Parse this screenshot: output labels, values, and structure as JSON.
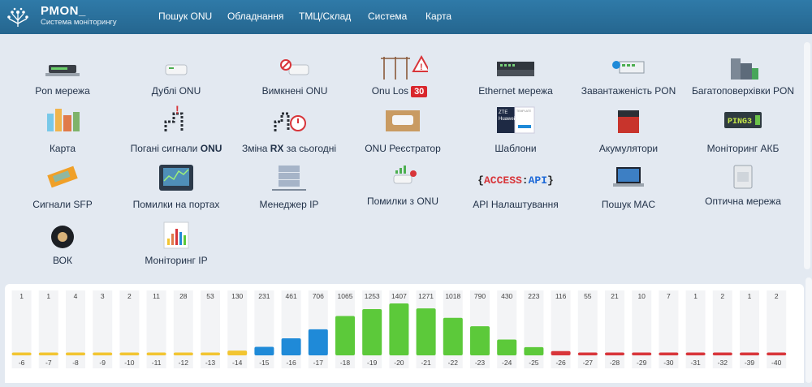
{
  "header": {
    "brand": "PMON_",
    "subtitle": "Система моніторингу",
    "nav": [
      "Пошук ONU",
      "Обладнання",
      "ТМЦ/Склад",
      "Система",
      "Карта"
    ]
  },
  "tiles": [
    {
      "label": "Pon мережа",
      "icon": "pon-network-icon"
    },
    {
      "label": "Дублі ONU",
      "icon": "onu-device-icon"
    },
    {
      "label": "Вимкнені ONU",
      "icon": "onu-off-icon"
    },
    {
      "label": "Onu Los",
      "badge": "30",
      "icon": "power-pole-warning-icon"
    },
    {
      "label": "Ethernet мережа",
      "icon": "switch-icon"
    },
    {
      "label": "Завантаженість PON",
      "icon": "pon-load-icon"
    },
    {
      "label": "Багатоповерхівки PON",
      "icon": "building-icon"
    },
    {
      "label": "Карта",
      "icon": "city-map-icon"
    },
    {
      "label": "Погані сигнали",
      "label_bold": "ONU",
      "icon": "bad-signal-icon"
    },
    {
      "label": "Зміна",
      "label_bold": "RX",
      "label_after": " за сьогодні",
      "icon": "rx-change-icon"
    },
    {
      "label": "ONU Реєстратор",
      "icon": "onu-box-icon"
    },
    {
      "label": "Шаблони",
      "icon": "templates-icon"
    },
    {
      "label": "Акумулятори",
      "icon": "battery-icon"
    },
    {
      "label": "Моніторинг АКБ",
      "icon": "ping-icon"
    },
    {
      "label": "Сигнали SFP",
      "icon": "sfp-icon"
    },
    {
      "label": "Помилки на портах",
      "icon": "port-errors-icon"
    },
    {
      "label": "Менеджер IP",
      "icon": "ip-manager-icon"
    },
    {
      "label": "Помилки з ONU",
      "icon": "onu-errors-icon"
    },
    {
      "label": "API Налаштування",
      "icon": "api-icon"
    },
    {
      "label": "Пошук MAC",
      "icon": "laptop-icon"
    },
    {
      "label": "Оптична мережа",
      "icon": "optical-box-icon"
    },
    {
      "label": "ВОК",
      "icon": "cable-drum-icon"
    },
    {
      "label": "Моніторинг IP",
      "icon": "ip-monitoring-icon"
    }
  ],
  "api_icon_text": {
    "left": "{",
    "access": "ACCESS",
    "colon": ":",
    "api": "API",
    "right": "}"
  },
  "ping_icon_text": "PING3",
  "template_icon_text": [
    "ZTE",
    "Huawei",
    "TEMPLATE"
  ],
  "colors": {
    "header": "#2a6f9a",
    "yellow": "#f2c531",
    "blue": "#1f8ad8",
    "green": "#5cc93a",
    "red": "#d8353a",
    "badge": "#d9262c"
  },
  "chart_data": {
    "type": "bar",
    "categories": [
      "-6",
      "-7",
      "-8",
      "-9",
      "-10",
      "-11",
      "-12",
      "-13",
      "-14",
      "-15",
      "-16",
      "-17",
      "-18",
      "-19",
      "-20",
      "-21",
      "-22",
      "-23",
      "-24",
      "-25",
      "-26",
      "-27",
      "-28",
      "-29",
      "-30",
      "-31",
      "-32",
      "-39",
      "-40"
    ],
    "values": [
      1,
      1,
      4,
      3,
      2,
      11,
      28,
      53,
      130,
      231,
      461,
      706,
      1065,
      1253,
      1407,
      1271,
      1018,
      790,
      430,
      223,
      116,
      55,
      21,
      10,
      7,
      1,
      2,
      1,
      2
    ],
    "color_groups": [
      "yellow",
      "yellow",
      "yellow",
      "yellow",
      "yellow",
      "yellow",
      "yellow",
      "yellow",
      "yellow",
      "blue",
      "blue",
      "blue",
      "green",
      "green",
      "green",
      "green",
      "green",
      "green",
      "green",
      "green",
      "red",
      "red",
      "red",
      "red",
      "red",
      "red",
      "red",
      "red",
      "red"
    ],
    "ylim": [
      0,
      1407
    ]
  }
}
